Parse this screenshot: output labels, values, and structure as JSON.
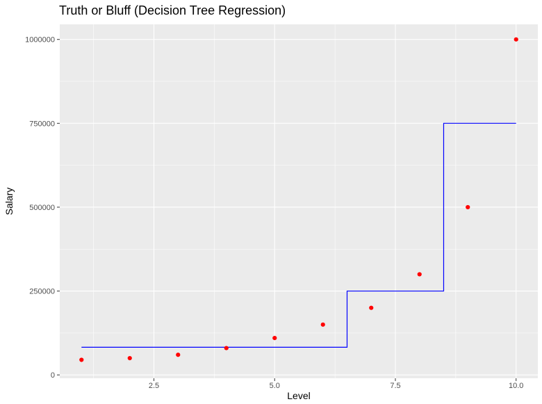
{
  "chart_data": {
    "type": "scatter",
    "title": "Truth or Bluff (Decision Tree Regression)",
    "xlabel": "Level",
    "ylabel": "Salary",
    "xlim": [
      0.55,
      10.45
    ],
    "ylim": [
      -10000,
      1045000
    ],
    "x_ticks": [
      {
        "value": 2.5,
        "label": "2.5"
      },
      {
        "value": 5.0,
        "label": "5.0"
      },
      {
        "value": 7.5,
        "label": "7.5"
      },
      {
        "value": 10.0,
        "label": "10.0"
      }
    ],
    "y_ticks": [
      {
        "value": 0,
        "label": "0"
      },
      {
        "value": 250000,
        "label": "250000"
      },
      {
        "value": 500000,
        "label": "500000"
      },
      {
        "value": 750000,
        "label": "750000"
      },
      {
        "value": 1000000,
        "label": "1000000"
      }
    ],
    "grid": true,
    "points": {
      "color": "#ff0000",
      "x": [
        1,
        2,
        3,
        4,
        5,
        6,
        7,
        8,
        9,
        10
      ],
      "y": [
        45000,
        50000,
        60000,
        80000,
        110000,
        150000,
        200000,
        300000,
        500000,
        1000000
      ]
    },
    "step_line": {
      "color": "#0000ff",
      "x": [
        1.0,
        6.5,
        6.5,
        8.5,
        8.5,
        10.0
      ],
      "y": [
        82500,
        82500,
        250000,
        250000,
        750000,
        750000
      ]
    }
  },
  "colors": {
    "panel_background": "#ebebeb",
    "grid_major": "#ffffff",
    "tick_mark": "#333333"
  }
}
